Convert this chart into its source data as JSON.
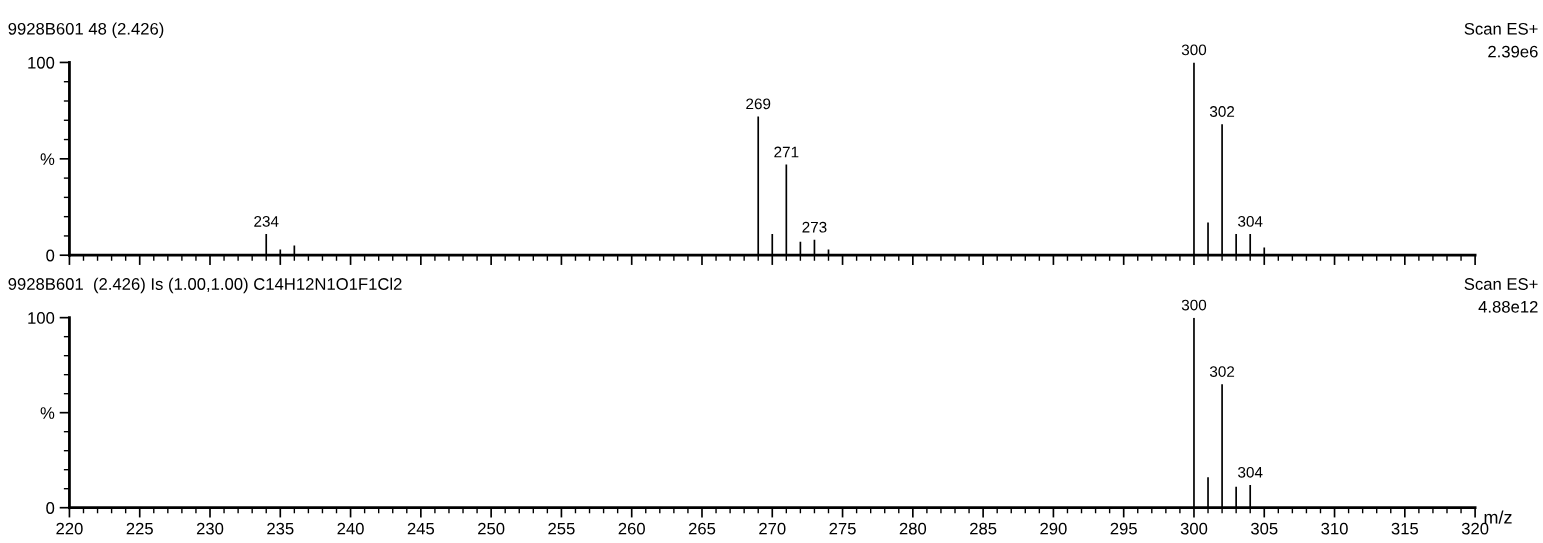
{
  "chart_data": [
    {
      "type": "bar",
      "title": "9928B601 48 (2.426)",
      "x": [
        234,
        235,
        236,
        269,
        270,
        271,
        272,
        273,
        274,
        300,
        301,
        302,
        303,
        304,
        305
      ],
      "values": [
        11,
        3,
        5,
        72,
        11,
        47,
        7,
        8,
        3,
        100,
        17,
        68,
        11,
        11,
        4
      ],
      "color": "#000000",
      "xlim": [
        220,
        320
      ],
      "xticks": [
        220,
        225,
        230,
        235,
        240,
        245,
        250,
        255,
        260,
        265,
        270,
        275,
        280,
        285,
        290,
        295,
        300,
        305,
        310,
        315,
        320
      ],
      "ylim": [
        0,
        100
      ],
      "yticks": [
        0,
        {
          "value": 50,
          "label": "%"
        },
        100
      ],
      "tick_labels": "y",
      "grid": false,
      "legend": false,
      "annotations": [
        "Scan ES+",
        "2.39e6",
        {
          "text": "234",
          "x": 234,
          "y": 11
        },
        {
          "text": "269",
          "x": 269,
          "y": 72
        },
        {
          "text": "271",
          "x": 271,
          "y": 47
        },
        {
          "text": "273",
          "x": 273,
          "y": 8
        },
        {
          "text": "300",
          "x": 300,
          "y": 100
        },
        {
          "text": "302",
          "x": 302,
          "y": 68
        },
        {
          "text": "304",
          "x": 304,
          "y": 11
        }
      ]
    },
    {
      "type": "bar",
      "title": "9928B601  (2.426) Is (1.00,1.00) C14H12N1O1F1Cl2",
      "xlabel": "m/z",
      "x": [
        300,
        301,
        302,
        303,
        304
      ],
      "values": [
        100,
        16,
        65,
        11,
        12
      ],
      "color": "#000000",
      "xlim": [
        220,
        320
      ],
      "xticks": [
        220,
        225,
        230,
        235,
        240,
        245,
        250,
        255,
        260,
        265,
        270,
        275,
        280,
        285,
        290,
        295,
        300,
        305,
        310,
        315,
        320
      ],
      "ylim": [
        0,
        100
      ],
      "yticks": [
        0,
        {
          "value": 50,
          "label": "%"
        },
        100
      ],
      "grid": false,
      "legend": false,
      "annotations": [
        "Scan ES+",
        "4.88e12",
        {
          "text": "300",
          "x": 300,
          "y": 100
        },
        {
          "text": "302",
          "x": 302,
          "y": 65
        },
        {
          "text": "304",
          "x": 304,
          "y": 12
        }
      ]
    }
  ]
}
